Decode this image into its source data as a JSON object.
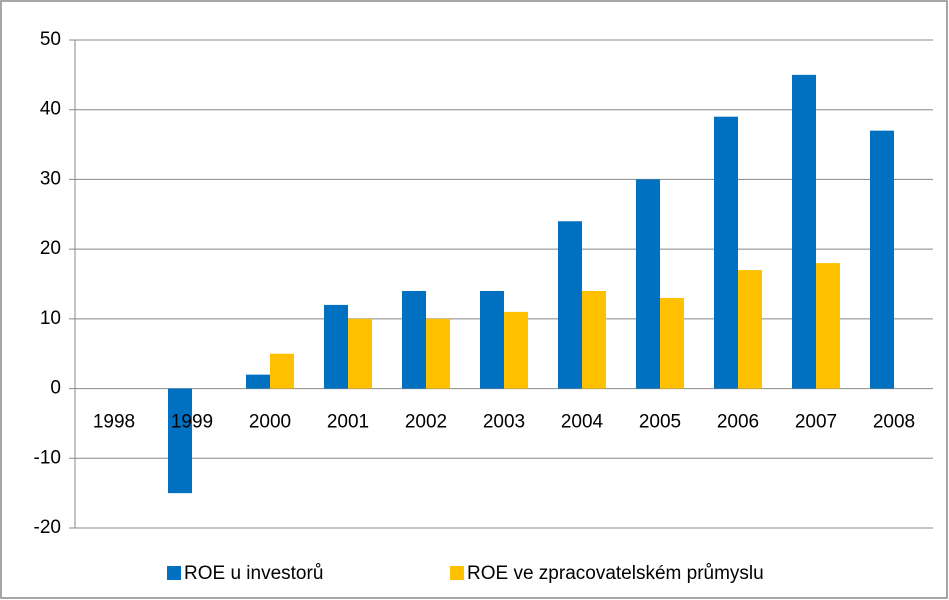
{
  "chart_data": {
    "type": "bar",
    "categories": [
      "1998",
      "1999",
      "2000",
      "2001",
      "2002",
      "2003",
      "2004",
      "2005",
      "2006",
      "2007",
      "2008"
    ],
    "series": [
      {
        "name": "ROE u investorů",
        "color": "#0070c0",
        "values": [
          null,
          -15,
          2,
          12,
          14,
          14,
          24,
          30,
          39,
          45,
          37
        ]
      },
      {
        "name": "ROE ve zpracovatelském průmyslu",
        "color": "#ffc000",
        "values": [
          null,
          null,
          5,
          10,
          10,
          11,
          14,
          13,
          17,
          18,
          null
        ]
      }
    ],
    "ylim": [
      -20,
      50
    ],
    "yticks": [
      -20,
      -10,
      0,
      10,
      20,
      30,
      40,
      50
    ],
    "grid": true,
    "legend": "bottom"
  }
}
